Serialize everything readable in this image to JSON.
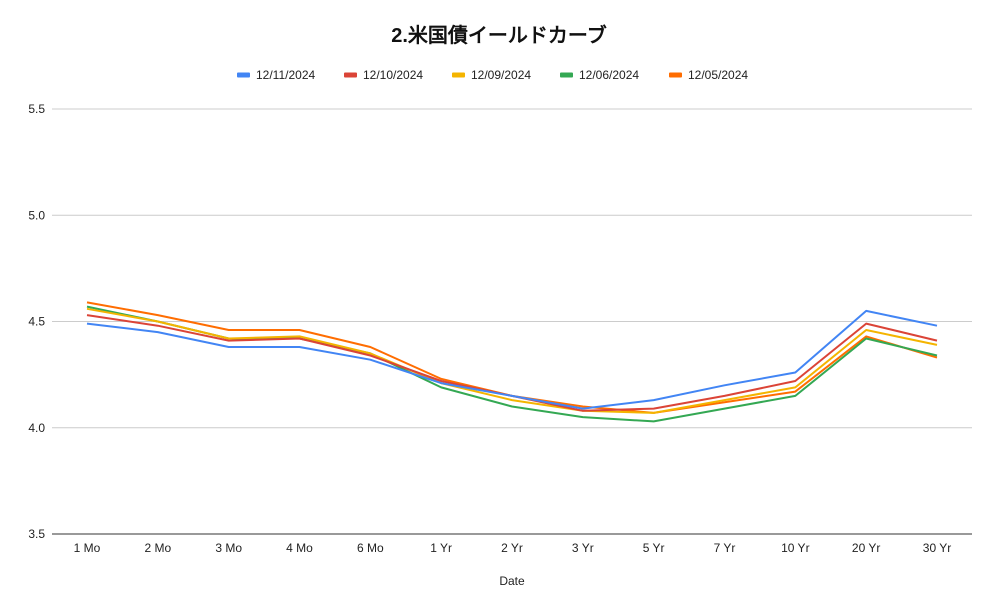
{
  "chart_data": {
    "type": "line",
    "title": "2.米国債イールドカーブ",
    "xlabel": "Date",
    "ylabel": "",
    "ylim": [
      3.5,
      5.5
    ],
    "yticks": [
      "5.5",
      "5.0",
      "4.5",
      "4.0",
      "3.5"
    ],
    "grid": true,
    "legend_position": "top",
    "categories": [
      "1 Mo",
      "2 Mo",
      "3 Mo",
      "4 Mo",
      "6 Mo",
      "1 Yr",
      "2 Yr",
      "3 Yr",
      "5 Yr",
      "7 Yr",
      "10 Yr",
      "20 Yr",
      "30 Yr"
    ],
    "series": [
      {
        "name": "12/11/2024",
        "color": "#4285F4",
        "values": [
          4.49,
          4.45,
          4.38,
          4.38,
          4.32,
          4.21,
          4.15,
          4.09,
          4.13,
          4.2,
          4.26,
          4.55,
          4.48
        ]
      },
      {
        "name": "12/10/2024",
        "color": "#DB4437",
        "values": [
          4.53,
          4.48,
          4.41,
          4.42,
          4.34,
          4.22,
          4.15,
          4.08,
          4.09,
          4.15,
          4.22,
          4.49,
          4.41
        ]
      },
      {
        "name": "12/09/2024",
        "color": "#F4B400",
        "values": [
          4.56,
          4.5,
          4.42,
          4.43,
          4.35,
          4.21,
          4.13,
          4.08,
          4.07,
          4.13,
          4.19,
          4.46,
          4.39
        ]
      },
      {
        "name": "12/06/2024",
        "color": "#34A853",
        "values": [
          4.57,
          4.5,
          4.42,
          4.42,
          4.35,
          4.19,
          4.1,
          4.05,
          4.03,
          4.09,
          4.15,
          4.42,
          4.34
        ]
      },
      {
        "name": "12/05/2024",
        "color": "#FF6D01",
        "values": [
          4.59,
          4.53,
          4.46,
          4.46,
          4.38,
          4.23,
          4.15,
          4.1,
          4.07,
          4.12,
          4.17,
          4.43,
          4.33
        ]
      }
    ]
  }
}
